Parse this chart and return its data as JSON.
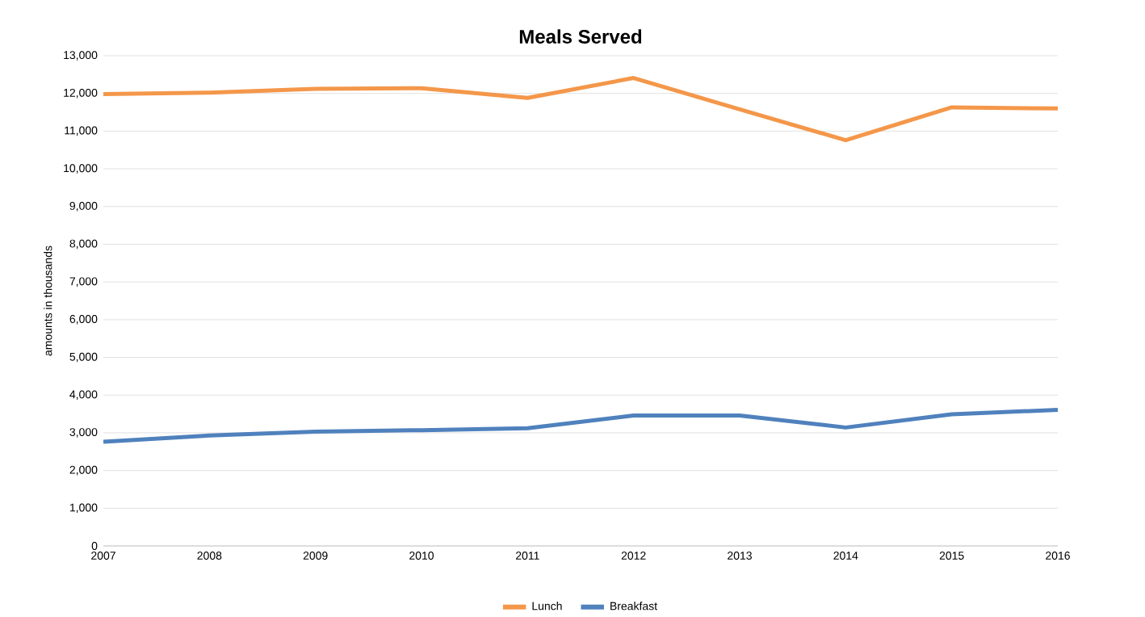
{
  "chart_data": {
    "type": "line",
    "title": "Meals Served",
    "ylabel": "amounts in thousands",
    "categories": [
      "2007",
      "2008",
      "2009",
      "2010",
      "2011",
      "2012",
      "2013",
      "2014",
      "2015",
      "2016"
    ],
    "series": [
      {
        "name": "Lunch",
        "color": "#f4974a",
        "values": [
          11980,
          12020,
          12120,
          12140,
          11880,
          12410,
          11580,
          10760,
          11630,
          11600
        ]
      },
      {
        "name": "Breakfast",
        "color": "#4f81bd",
        "values": [
          2760,
          2930,
          3030,
          3070,
          3120,
          3460,
          3460,
          3140,
          3490,
          3610
        ]
      }
    ],
    "ylim": [
      0,
      13000
    ],
    "yticks": [
      0,
      {
        "value": 1000,
        "label": "1,000"
      },
      {
        "value": 2000,
        "label": "2,000"
      },
      {
        "value": 3000,
        "label": "3,000"
      },
      {
        "value": 4000,
        "label": "4,000"
      },
      {
        "value": 5000,
        "label": "5,000"
      },
      {
        "value": 6000,
        "label": "6,000"
      },
      {
        "value": 7000,
        "label": "7,000"
      },
      {
        "value": 8000,
        "label": "8,000"
      },
      {
        "value": 9000,
        "label": "9,000"
      },
      {
        "value": 10000,
        "label": "10,000"
      },
      {
        "value": 11000,
        "label": "11,000"
      },
      {
        "value": 12000,
        "label": "12,000"
      },
      {
        "value": 13000,
        "label": "13,000"
      }
    ],
    "grid": "y",
    "legend": "bottom",
    "marker": "none",
    "line_style": "solid"
  }
}
